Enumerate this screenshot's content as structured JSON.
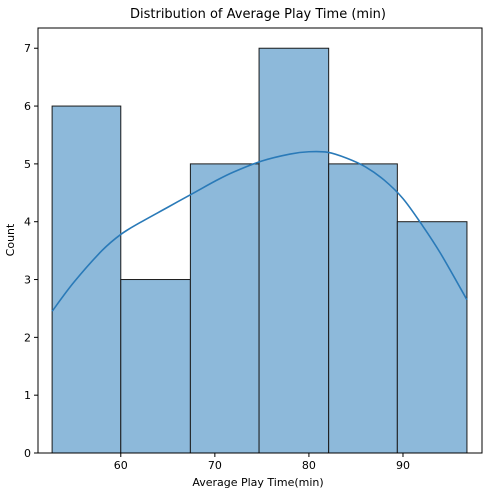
{
  "chart_data": {
    "type": "bar",
    "title": "Distribution of Average Play Time (min)",
    "xlabel": "Average Play Time(min)",
    "ylabel": "Count",
    "bins": [
      {
        "start": 52.7,
        "end": 60.0,
        "count": 6
      },
      {
        "start": 60.0,
        "end": 67.4,
        "count": 3
      },
      {
        "start": 67.4,
        "end": 74.7,
        "count": 5
      },
      {
        "start": 74.7,
        "end": 82.1,
        "count": 7
      },
      {
        "start": 82.1,
        "end": 89.4,
        "count": 5
      },
      {
        "start": 89.4,
        "end": 96.8,
        "count": 4
      }
    ],
    "kde": {
      "x": [
        52.7,
        55,
        58,
        60,
        62,
        65,
        68,
        70,
        72,
        75,
        78,
        80,
        82,
        84,
        86,
        88,
        90,
        92,
        94,
        96.8
      ],
      "y": [
        2.45,
        2.95,
        3.5,
        3.78,
        3.98,
        4.25,
        4.52,
        4.7,
        4.86,
        5.05,
        5.17,
        5.21,
        5.2,
        5.1,
        4.95,
        4.72,
        4.4,
        3.95,
        3.45,
        2.65
      ]
    },
    "xlim": [
      51.2,
      98.4
    ],
    "ylim": [
      0,
      7.35
    ],
    "xticks": [
      60,
      70,
      80,
      90
    ],
    "yticks": [
      0,
      1,
      2,
      3,
      4,
      5,
      6,
      7
    ],
    "grid": false,
    "colors": {
      "bar_fill": "#8db9da",
      "bar_edge": "#1a1a1a",
      "kde_line": "#2a7ab8"
    }
  }
}
